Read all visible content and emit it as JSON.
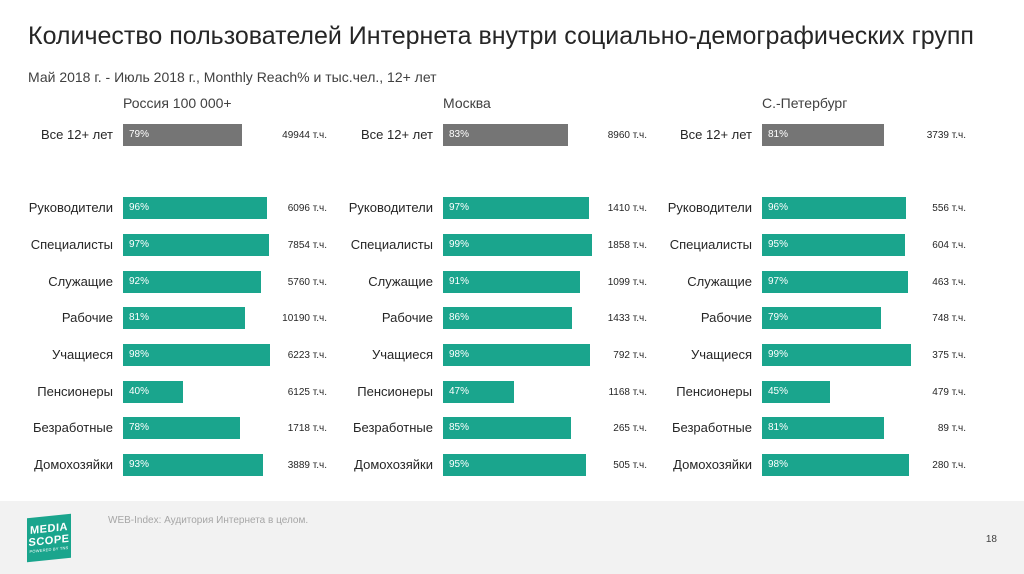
{
  "title": "Количество пользователей Интернета внутри социально-демографических групп",
  "subtitle": "Май 2018 г. - Июль 2018 г., Monthly Reach% и тыс.чел., 12+ лет",
  "unit_suffix": "т.ч.",
  "colors": {
    "group_bar": "#1aa58d",
    "total_bar": "#757575"
  },
  "chart_data": [
    {
      "type": "bar",
      "orientation": "horizontal",
      "title": "Россия 100 000+",
      "categories": [
        "Все 12+ лет",
        "Руководители",
        "Специалисты",
        "Служащие",
        "Рабочие",
        "Учащиеся",
        "Пенсионеры",
        "Безработные",
        "Домохозяйки"
      ],
      "reach_percent": [
        79,
        96,
        97,
        92,
        81,
        98,
        40,
        78,
        93
      ],
      "reach_labels": [
        "79%",
        "96%",
        "97%",
        "92%",
        "81%",
        "98%",
        "40%",
        "78%",
        "93%"
      ],
      "users_thousands": [
        "49944 т.ч.",
        "6096 т.ч.",
        "7854 т.ч.",
        "5760 т.ч.",
        "10190 т.ч.",
        "6223 т.ч.",
        "6125 т.ч.",
        "1718 т.ч.",
        "3889 т.ч."
      ]
    },
    {
      "type": "bar",
      "orientation": "horizontal",
      "title": "Москва",
      "categories": [
        "Все 12+ лет",
        "Руководители",
        "Специалисты",
        "Служащие",
        "Рабочие",
        "Учащиеся",
        "Пенсионеры",
        "Безработные",
        "Домохозяйки"
      ],
      "reach_percent": [
        83,
        97,
        99,
        91,
        86,
        98,
        47,
        85,
        95
      ],
      "reach_labels": [
        "83%",
        "97%",
        "99%",
        "91%",
        "86%",
        "98%",
        "47%",
        "85%",
        "95%"
      ],
      "users_thousands": [
        "8960 т.ч.",
        "1410 т.ч.",
        "1858 т.ч.",
        "1099 т.ч.",
        "1433 т.ч.",
        "792 т.ч.",
        "1168 т.ч.",
        "265 т.ч.",
        "505 т.ч."
      ]
    },
    {
      "type": "bar",
      "orientation": "horizontal",
      "title": "С.-Петербург",
      "categories": [
        "Все 12+ лет",
        "Руководители",
        "Специалисты",
        "Служащие",
        "Рабочие",
        "Учащиеся",
        "Пенсионеры",
        "Безработные",
        "Домохозяйки"
      ],
      "reach_percent": [
        81,
        96,
        95,
        97,
        79,
        99,
        45,
        81,
        98
      ],
      "reach_labels": [
        "81%",
        "96%",
        "95%",
        "97%",
        "79%",
        "99%",
        "45%",
        "81%",
        "98%"
      ],
      "users_thousands": [
        "3739 т.ч.",
        "556 т.ч.",
        "604 т.ч.",
        "463 т.ч.",
        "748 т.ч.",
        "375 т.ч.",
        "479 т.ч.",
        "89 т.ч.",
        "280 т.ч."
      ]
    }
  ],
  "footer": {
    "logo_line1": "MEDIA",
    "logo_line2": "SCOPE",
    "logo_line3": "POWERED BY TNS",
    "source": "WEB-Index: Аудитория Интернета в целом.",
    "page_number": "18"
  }
}
